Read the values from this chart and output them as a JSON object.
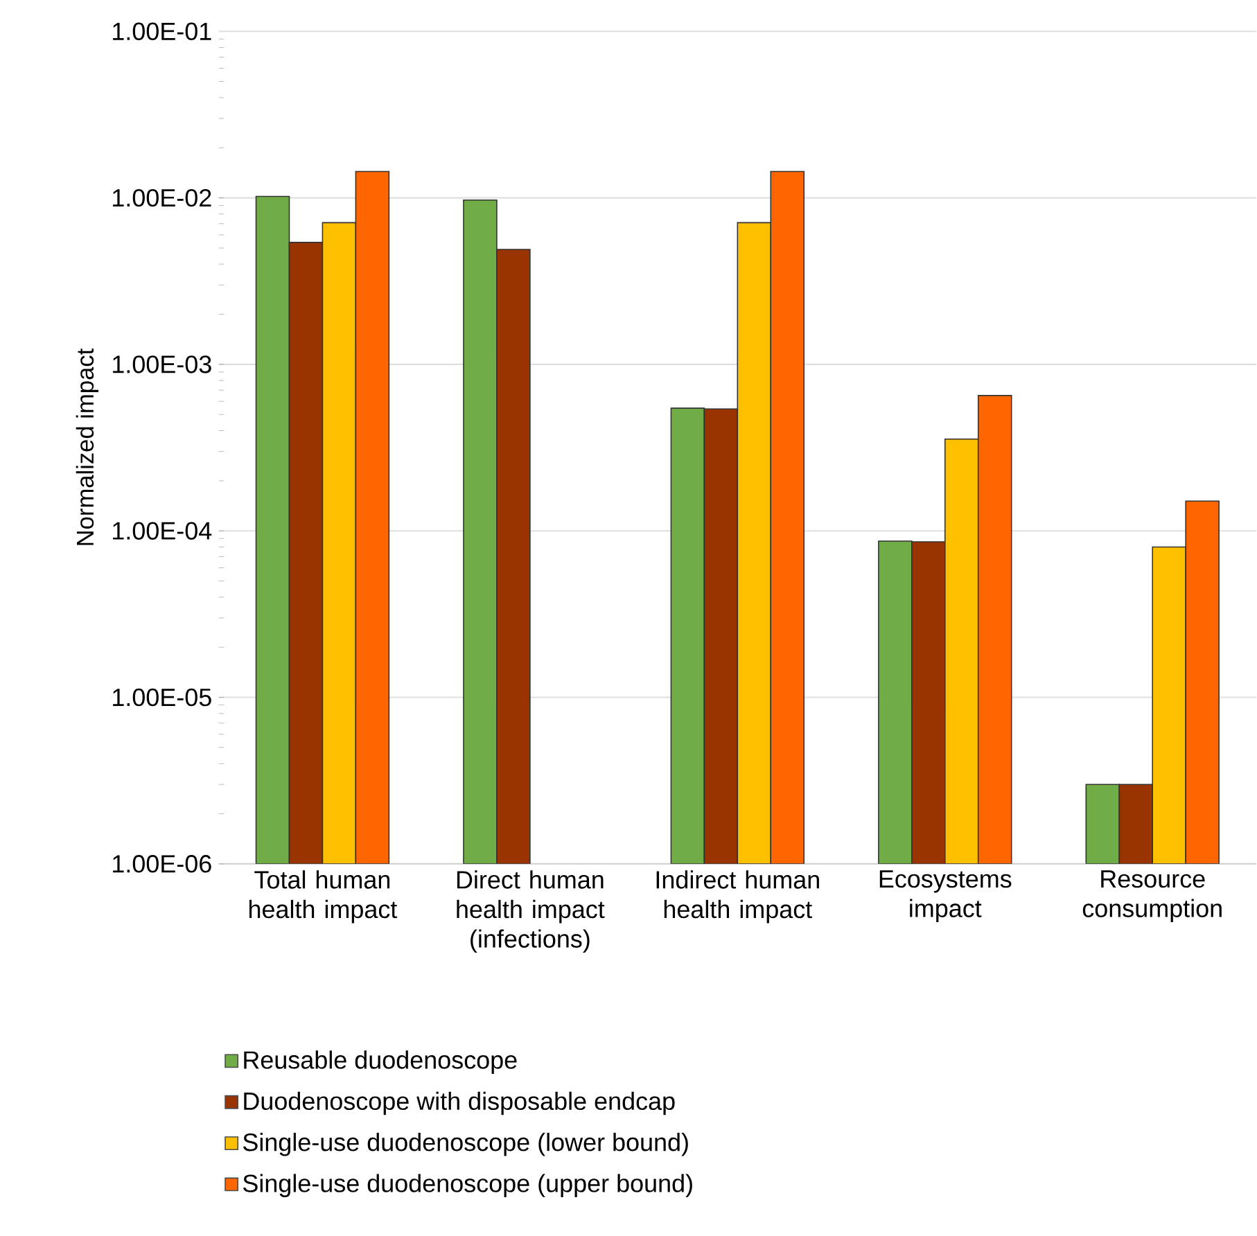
{
  "chart_data": {
    "type": "bar",
    "ylabel": "Normalized impact",
    "log": "y",
    "grid": "y",
    "legend": "bottom",
    "categories": [
      "Total human health impact",
      "Direct human health impact (infections)",
      "Indirect human health impact",
      "Ecosystems impact",
      "Resource consumption"
    ],
    "ylim": [
      1e-06,
      0.1
    ],
    "yticks": [
      {
        "value": 1e-06,
        "label": "1.00E-06"
      },
      {
        "value": 1e-05,
        "label": "1.00E-05"
      },
      {
        "value": 0.0001,
        "label": "1.00E-04"
      },
      {
        "value": 0.001,
        "label": "1.00E-03"
      },
      {
        "value": 0.01,
        "label": "1.00E-02"
      },
      {
        "value": 0.1,
        "label": "1.00E-01"
      }
    ],
    "series": [
      {
        "name": "Reusable duodenoscope",
        "color": "#70ad47",
        "values": [
          0.0102,
          0.0097,
          0.000546,
          8.68e-05,
          3e-06
        ]
      },
      {
        "name": "Duodenoscope with disposable endcap",
        "color": "#993300",
        "values": [
          0.0054,
          0.0049,
          0.00054,
          8.6e-05,
          3e-06
        ]
      },
      {
        "name": "Single-use duodenoscope (lower bound)",
        "color": "#ffc000",
        "values": [
          0.0071,
          null,
          0.0071,
          0.000356,
          8e-05
        ]
      },
      {
        "name": "Single-use duodenoscope (upper bound)",
        "color": "#ff6600",
        "values": [
          0.0144,
          null,
          0.0144,
          0.00065,
          0.000151
        ]
      }
    ]
  }
}
